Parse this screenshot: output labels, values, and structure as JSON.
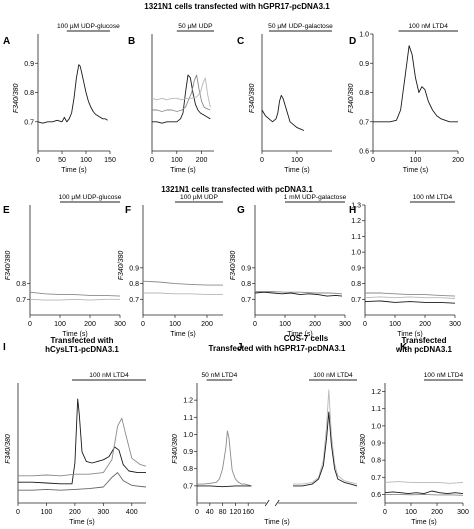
{
  "banners": {
    "row1": "1321N1 cells transfected with hGPR17-pcDNA3.1",
    "row2": "1321N1 cells transfected with pcDNA3.1",
    "row3_J": "COS-7 cells"
  },
  "colors": {
    "black_trace": "#1a1a1a",
    "gray_trace": "#8a8a8a",
    "light_trace": "#b8b8b8"
  },
  "chart_data": [
    {
      "id": "A",
      "type": "line",
      "group_label": "",
      "condition": "100 µM UDP-glucose",
      "xlabel": "Time (s)",
      "ylabel": "F340/380",
      "xlim": [
        0,
        150
      ],
      "ylim": [
        0.6,
        1.0
      ],
      "xticks": [
        "0",
        "50",
        "100",
        "150"
      ],
      "yticks": [
        "0.7",
        "0.8",
        "0.9"
      ],
      "stim_bar": [
        60,
        150
      ],
      "series": [
        {
          "color": "#1a1a1a",
          "x": [
            0,
            10,
            20,
            30,
            40,
            50,
            55,
            60,
            65,
            70,
            75,
            80,
            85,
            88,
            92,
            96,
            100,
            105,
            110,
            115,
            120,
            125,
            130,
            135,
            140,
            145
          ],
          "y": [
            0.7,
            0.695,
            0.7,
            0.7,
            0.705,
            0.7,
            0.715,
            0.7,
            0.71,
            0.73,
            0.78,
            0.85,
            0.895,
            0.89,
            0.86,
            0.83,
            0.8,
            0.77,
            0.75,
            0.735,
            0.725,
            0.72,
            0.715,
            0.71,
            0.71,
            0.705
          ]
        }
      ]
    },
    {
      "id": "B",
      "type": "line",
      "group_label": "",
      "condition": "50 µM UDP",
      "xlabel": "Time (s)",
      "ylabel": "",
      "xlim": [
        0,
        250
      ],
      "ylim": [
        0.6,
        1.0
      ],
      "xticks": [
        "0",
        "100",
        "200"
      ],
      "yticks": [],
      "stim_bar": [
        100,
        250
      ],
      "series": [
        {
          "color": "#1a1a1a",
          "x": [
            0,
            20,
            40,
            60,
            80,
            100,
            115,
            125,
            135,
            145,
            155,
            165,
            175,
            185,
            195,
            205,
            215,
            225,
            235
          ],
          "y": [
            0.7,
            0.7,
            0.695,
            0.7,
            0.7,
            0.7,
            0.71,
            0.73,
            0.8,
            0.86,
            0.85,
            0.8,
            0.76,
            0.74,
            0.73,
            0.725,
            0.72,
            0.715,
            0.71
          ]
        },
        {
          "color": "#8a8a8a",
          "x": [
            0,
            20,
            40,
            60,
            80,
            100,
            120,
            135,
            150,
            160,
            170,
            180,
            190,
            200,
            210,
            220,
            235
          ],
          "y": [
            0.74,
            0.74,
            0.735,
            0.74,
            0.74,
            0.735,
            0.74,
            0.75,
            0.78,
            0.8,
            0.84,
            0.86,
            0.81,
            0.77,
            0.75,
            0.745,
            0.74
          ]
        },
        {
          "color": "#b8b8b8",
          "x": [
            0,
            20,
            40,
            60,
            80,
            100,
            120,
            140,
            160,
            180,
            195,
            205,
            215,
            225,
            235
          ],
          "y": [
            0.78,
            0.775,
            0.78,
            0.775,
            0.78,
            0.78,
            0.775,
            0.78,
            0.78,
            0.785,
            0.8,
            0.83,
            0.85,
            0.79,
            0.75
          ]
        }
      ]
    },
    {
      "id": "C",
      "type": "line",
      "group_label": "",
      "condition": "50 µM UDP-galactose",
      "xlabel": "Time (s)",
      "ylabel": "F340/380",
      "xlim": [
        0,
        200
      ],
      "ylim": [
        0.6,
        1.0
      ],
      "xticks": [
        "0",
        "100"
      ],
      "yticks": [],
      "stim_bar": [
        20,
        200
      ],
      "series": [
        {
          "color": "#1a1a1a",
          "x": [
            0,
            10,
            20,
            30,
            40,
            45,
            50,
            55,
            60,
            65,
            70,
            75,
            80,
            90,
            100,
            110,
            120
          ],
          "y": [
            0.74,
            0.72,
            0.71,
            0.7,
            0.71,
            0.73,
            0.77,
            0.79,
            0.78,
            0.76,
            0.74,
            0.72,
            0.7,
            0.69,
            0.68,
            0.675,
            0.67
          ]
        }
      ]
    },
    {
      "id": "D",
      "type": "line",
      "group_label": "",
      "condition": "100 nM LTD4",
      "xlabel": "Time (s)",
      "ylabel": "F340/380",
      "xlim": [
        0,
        200
      ],
      "ylim": [
        0.6,
        1.0
      ],
      "xticks": [
        "0",
        "100",
        "200"
      ],
      "yticks": [
        "0.6",
        "0.7",
        "0.8",
        "0.9",
        "1.0"
      ],
      "stim_bar": [
        60,
        200
      ],
      "series": [
        {
          "color": "#1a1a1a",
          "x": [
            0,
            20,
            40,
            55,
            65,
            75,
            85,
            92,
            100,
            108,
            115,
            122,
            130,
            140,
            150,
            160,
            170,
            180,
            190,
            200
          ],
          "y": [
            0.7,
            0.7,
            0.7,
            0.705,
            0.74,
            0.85,
            0.96,
            0.93,
            0.85,
            0.8,
            0.82,
            0.81,
            0.77,
            0.74,
            0.72,
            0.71,
            0.705,
            0.7,
            0.7,
            0.7
          ]
        }
      ]
    },
    {
      "id": "E",
      "type": "line",
      "group_label": "",
      "condition": "100 µM UDP-glucose",
      "xlabel": "Time (s)",
      "ylabel": "F340/380",
      "xlim": [
        0,
        300
      ],
      "ylim": [
        0.6,
        1.3
      ],
      "xticks": [
        "0",
        "100",
        "200",
        "300"
      ],
      "yticks": [
        "0.7",
        "0.8"
      ],
      "stim_bar": [
        100,
        300
      ],
      "series": [
        {
          "color": "#8a8a8a",
          "x": [
            0,
            50,
            100,
            150,
            200,
            250,
            300
          ],
          "y": [
            0.745,
            0.735,
            0.73,
            0.73,
            0.725,
            0.725,
            0.72
          ]
        },
        {
          "color": "#b8b8b8",
          "x": [
            0,
            50,
            100,
            150,
            200,
            250,
            300
          ],
          "y": [
            0.7,
            0.695,
            0.695,
            0.7,
            0.695,
            0.7,
            0.7
          ]
        }
      ]
    },
    {
      "id": "F",
      "type": "line",
      "group_label": "",
      "condition": "100 µM UDP",
      "xlabel": "Time (s)",
      "ylabel": "F340/380",
      "xlim": [
        0,
        250
      ],
      "ylim": [
        0.6,
        1.3
      ],
      "xticks": [
        "0",
        "100",
        "200"
      ],
      "yticks": [
        "0.7",
        "0.8",
        "0.9"
      ],
      "stim_bar": [
        100,
        250
      ],
      "series": [
        {
          "color": "#8a8a8a",
          "x": [
            0,
            50,
            100,
            150,
            200,
            250
          ],
          "y": [
            0.815,
            0.81,
            0.8,
            0.795,
            0.79,
            0.79
          ]
        },
        {
          "color": "#b8b8b8",
          "x": [
            0,
            50,
            100,
            150,
            200,
            250
          ],
          "y": [
            0.74,
            0.74,
            0.735,
            0.735,
            0.73,
            0.73
          ]
        }
      ]
    },
    {
      "id": "G",
      "type": "line",
      "group_label": "",
      "condition": "1 mM UDP-galactose",
      "xlabel": "Time (s)",
      "ylabel": "F340/380",
      "xlim": [
        0,
        300
      ],
      "ylim": [
        0.6,
        1.3
      ],
      "xticks": [
        "0",
        "100",
        "200",
        "300"
      ],
      "yticks": [
        "0.7",
        "0.8",
        "0.9"
      ],
      "stim_bar": [
        100,
        300
      ],
      "series": [
        {
          "color": "#1a1a1a",
          "x": [
            0,
            30,
            60,
            90,
            120,
            150,
            180,
            210,
            240,
            270,
            290
          ],
          "y": [
            0.74,
            0.745,
            0.74,
            0.735,
            0.74,
            0.73,
            0.735,
            0.73,
            0.72,
            0.725,
            0.72
          ]
        },
        {
          "color": "#8a8a8a",
          "x": [
            0,
            50,
            100,
            150,
            200,
            250,
            290
          ],
          "y": [
            0.75,
            0.75,
            0.745,
            0.745,
            0.74,
            0.74,
            0.735
          ]
        }
      ]
    },
    {
      "id": "H",
      "type": "line",
      "group_label": "",
      "condition": "100 nM LTD4",
      "xlabel": "Time (s)",
      "ylabel": "",
      "xlim": [
        0,
        300
      ],
      "ylim": [
        0.6,
        1.3
      ],
      "xticks": [
        "0",
        "100",
        "200",
        "300"
      ],
      "yticks": [
        "0.7",
        "0.8",
        "0.9",
        "1.0",
        "1.1",
        "1.2",
        "1.3"
      ],
      "stim_bar": [
        150,
        300
      ],
      "series": [
        {
          "color": "#8a8a8a",
          "x": [
            0,
            50,
            100,
            150,
            200,
            250,
            300
          ],
          "y": [
            0.74,
            0.74,
            0.735,
            0.73,
            0.73,
            0.725,
            0.72
          ]
        },
        {
          "color": "#b8b8b8",
          "x": [
            0,
            50,
            100,
            150,
            200,
            250,
            300
          ],
          "y": [
            0.71,
            0.715,
            0.71,
            0.715,
            0.71,
            0.71,
            0.705
          ]
        },
        {
          "color": "#1a1a1a",
          "x": [
            0,
            50,
            100,
            150,
            200,
            250,
            300
          ],
          "y": [
            0.685,
            0.69,
            0.68,
            0.685,
            0.68,
            0.68,
            0.675
          ]
        }
      ]
    },
    {
      "id": "I",
      "type": "line",
      "group_label": "Transfected with hCysLT1-pcDNA3.1",
      "condition": "100 nM LTD4",
      "xlabel": "Time (s)",
      "ylabel": "F340/380",
      "xlim": [
        0,
        450
      ],
      "ylim": [
        0.6,
        1.35
      ],
      "xticks": [
        "0",
        "100",
        "200",
        "300",
        "400"
      ],
      "yticks": [],
      "stim_bar": [
        190,
        450
      ],
      "series": [
        {
          "color": "#1a1a1a",
          "x": [
            0,
            50,
            100,
            150,
            190,
            200,
            210,
            215,
            225,
            240,
            260,
            280,
            300,
            320,
            340,
            355,
            370,
            390,
            420,
            450
          ],
          "y": [
            0.73,
            0.73,
            0.725,
            0.72,
            0.72,
            0.85,
            1.25,
            1.16,
            0.92,
            0.86,
            0.85,
            0.86,
            0.87,
            0.89,
            0.95,
            0.93,
            0.84,
            0.8,
            0.79,
            0.79
          ]
        },
        {
          "color": "#8a8a8a",
          "x": [
            0,
            50,
            100,
            150,
            200,
            250,
            300,
            330,
            350,
            365,
            380,
            400,
            430,
            450
          ],
          "y": [
            0.77,
            0.77,
            0.775,
            0.77,
            0.78,
            0.78,
            0.79,
            0.87,
            1.08,
            1.13,
            1.02,
            0.88,
            0.84,
            0.83
          ]
        },
        {
          "color": "#666666",
          "x": [
            0,
            50,
            100,
            150,
            200,
            250,
            300,
            330,
            350,
            370,
            400,
            450
          ],
          "y": [
            0.68,
            0.68,
            0.685,
            0.68,
            0.685,
            0.69,
            0.7,
            0.76,
            0.79,
            0.74,
            0.71,
            0.7
          ]
        }
      ]
    },
    {
      "id": "J",
      "type": "line",
      "group_label": "Transfected with hGPR17-pcDNA3.1",
      "condition": "50 nM LTD4 / 100 nM LTD4",
      "xlabel": "Time (s)",
      "ylabel": "F340/380",
      "xlim": [
        0,
        500
      ],
      "ylim": [
        0.6,
        1.3
      ],
      "xticks": [
        "0",
        "40",
        "80",
        "120",
        "160"
      ],
      "yticks": [
        "0.7",
        "0.8",
        "0.9",
        "1.0",
        "1.1",
        "1.2"
      ],
      "conditions": [
        "50 nM LTD4",
        "100 nM LTD4"
      ],
      "stim_bars": [
        [
          30,
          110
        ],
        [
          350,
          500
        ]
      ],
      "series": [
        {
          "color": "#8a8a8a",
          "x": [
            0,
            20,
            40,
            60,
            70,
            80,
            90,
            95,
            100,
            105,
            110,
            120,
            130,
            140,
            150,
            160,
            170
          ],
          "y": [
            0.71,
            0.71,
            0.715,
            0.72,
            0.74,
            0.8,
            0.92,
            1.02,
            0.98,
            0.88,
            0.79,
            0.74,
            0.72,
            0.71,
            0.71,
            0.705,
            0.7
          ]
        },
        {
          "color": "#1a1a1a",
          "x": [
            0,
            40,
            80,
            120,
            160,
            170
          ],
          "y": [
            0.7,
            0.7,
            0.695,
            0.7,
            0.7,
            0.7
          ]
        },
        {
          "color": "#b8b8b8",
          "x": [
            300,
            330,
            360,
            380,
            395,
            405,
            412,
            420,
            430,
            440,
            460,
            480,
            500
          ],
          "y": [
            0.71,
            0.71,
            0.72,
            0.75,
            0.85,
            1.05,
            1.26,
            1.0,
            0.83,
            0.76,
            0.73,
            0.72,
            0.71
          ]
        },
        {
          "color": "#1a1a1a",
          "x": [
            300,
            330,
            360,
            380,
            395,
            405,
            412,
            420,
            430,
            440,
            460,
            480,
            500
          ],
          "y": [
            0.7,
            0.7,
            0.71,
            0.74,
            0.82,
            0.98,
            1.13,
            0.94,
            0.8,
            0.74,
            0.72,
            0.71,
            0.7
          ]
        }
      ]
    },
    {
      "id": "K",
      "type": "line",
      "group_label": "Transfected with pcDNA3.1",
      "condition": "100 nM LTD4",
      "xlabel": "Time (s)",
      "ylabel": "F340/380",
      "xlim": [
        0,
        300
      ],
      "ylim": [
        0.55,
        1.25
      ],
      "xticks": [
        "0",
        "100",
        "200",
        "300"
      ],
      "yticks": [
        "0.6",
        "0.7",
        "0.8",
        "0.9",
        "1.0",
        "1.1",
        "1.2"
      ],
      "stim_bar": [
        150,
        300
      ],
      "series": [
        {
          "color": "#b8b8b8",
          "x": [
            0,
            50,
            100,
            150,
            200,
            250,
            300
          ],
          "y": [
            0.67,
            0.675,
            0.67,
            0.67,
            0.67,
            0.665,
            0.67
          ]
        },
        {
          "color": "#1a1a1a",
          "x": [
            0,
            30,
            60,
            90,
            120,
            150,
            180,
            210,
            240,
            270,
            300
          ],
          "y": [
            0.61,
            0.615,
            0.61,
            0.605,
            0.61,
            0.605,
            0.62,
            0.61,
            0.605,
            0.61,
            0.605
          ]
        },
        {
          "color": "#8a8a8a",
          "x": [
            0,
            50,
            100,
            150,
            200,
            250,
            300
          ],
          "y": [
            0.6,
            0.6,
            0.598,
            0.6,
            0.597,
            0.598,
            0.595
          ]
        }
      ]
    }
  ]
}
